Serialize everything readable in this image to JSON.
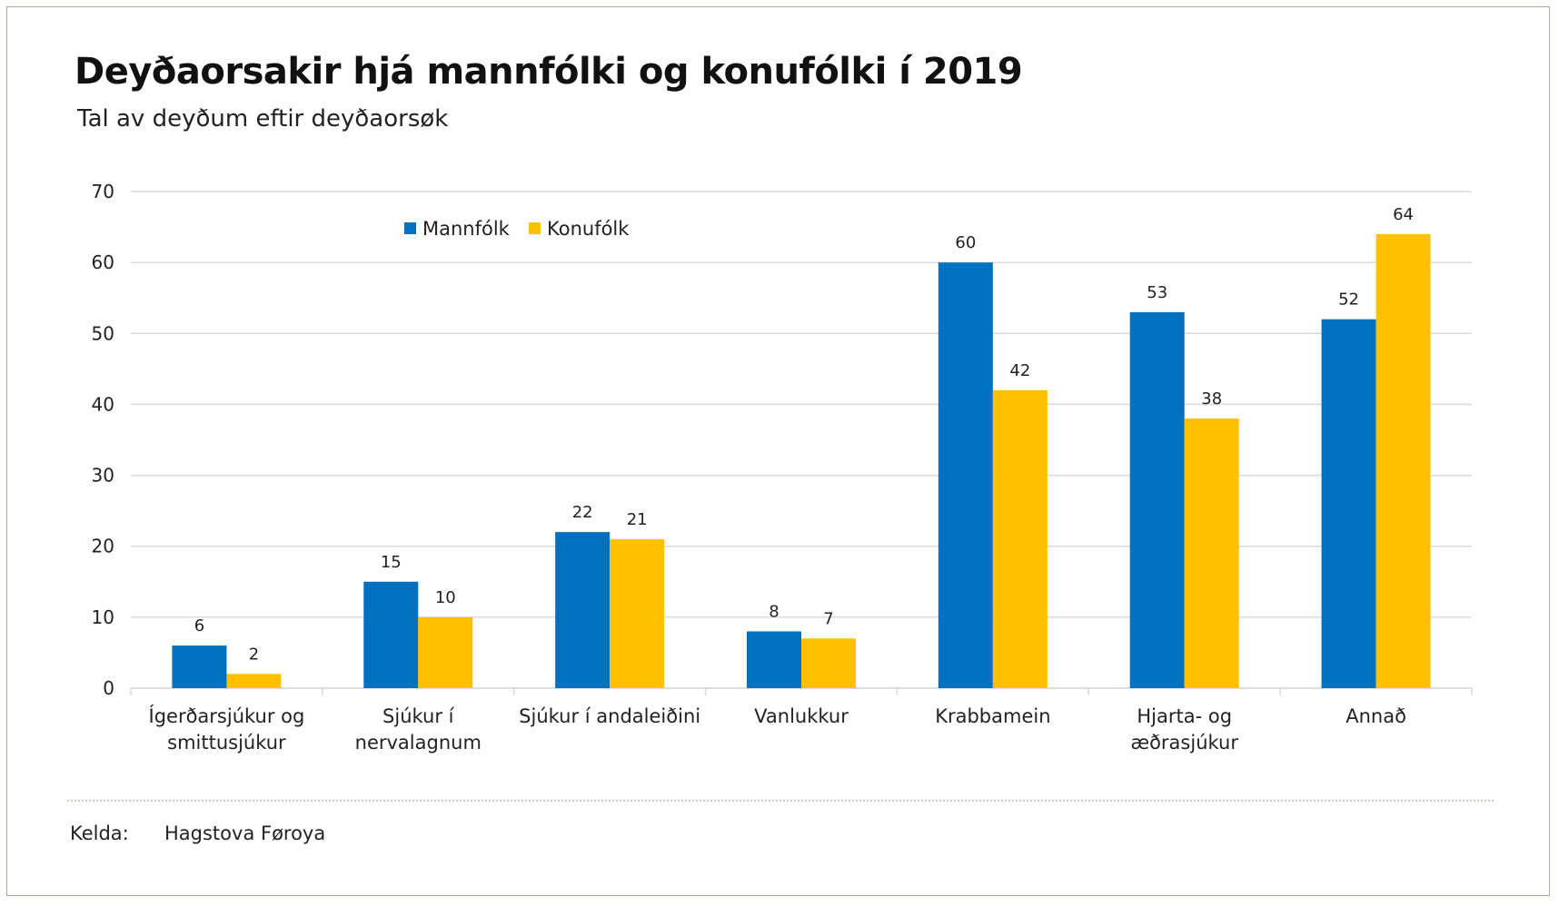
{
  "chart_data": {
    "type": "bar",
    "title": "Deyðaorsakir hjá mannfólki og konufólki í 2019",
    "subtitle": "Tal av deyðum eftir deyðaorsøk",
    "categories": [
      [
        "Ígerðarsjúkur og",
        "smittusjúkur"
      ],
      [
        "Sjúkur í",
        "nervalagnum"
      ],
      [
        "Sjúkur í andaleiðini"
      ],
      [
        "Vanlukkur"
      ],
      [
        "Krabbamein"
      ],
      [
        "Hjarta- og",
        "æðrasjúkur"
      ],
      [
        "Annað"
      ]
    ],
    "series": [
      {
        "name": "Mannfólk",
        "color": "#0070c0",
        "values": [
          6,
          15,
          22,
          8,
          60,
          53,
          52
        ]
      },
      {
        "name": "Konufólk",
        "color": "#ffc000",
        "values": [
          2,
          10,
          21,
          7,
          42,
          38,
          64
        ]
      }
    ],
    "ylim": [
      0,
      70
    ],
    "yticks": [
      0,
      10,
      20,
      30,
      40,
      50,
      60,
      70
    ],
    "xlabel": "",
    "ylabel": "",
    "grid": true,
    "legend": "top-left"
  },
  "source": {
    "label": "Kelda:",
    "value": "Hagstova Føroya"
  }
}
